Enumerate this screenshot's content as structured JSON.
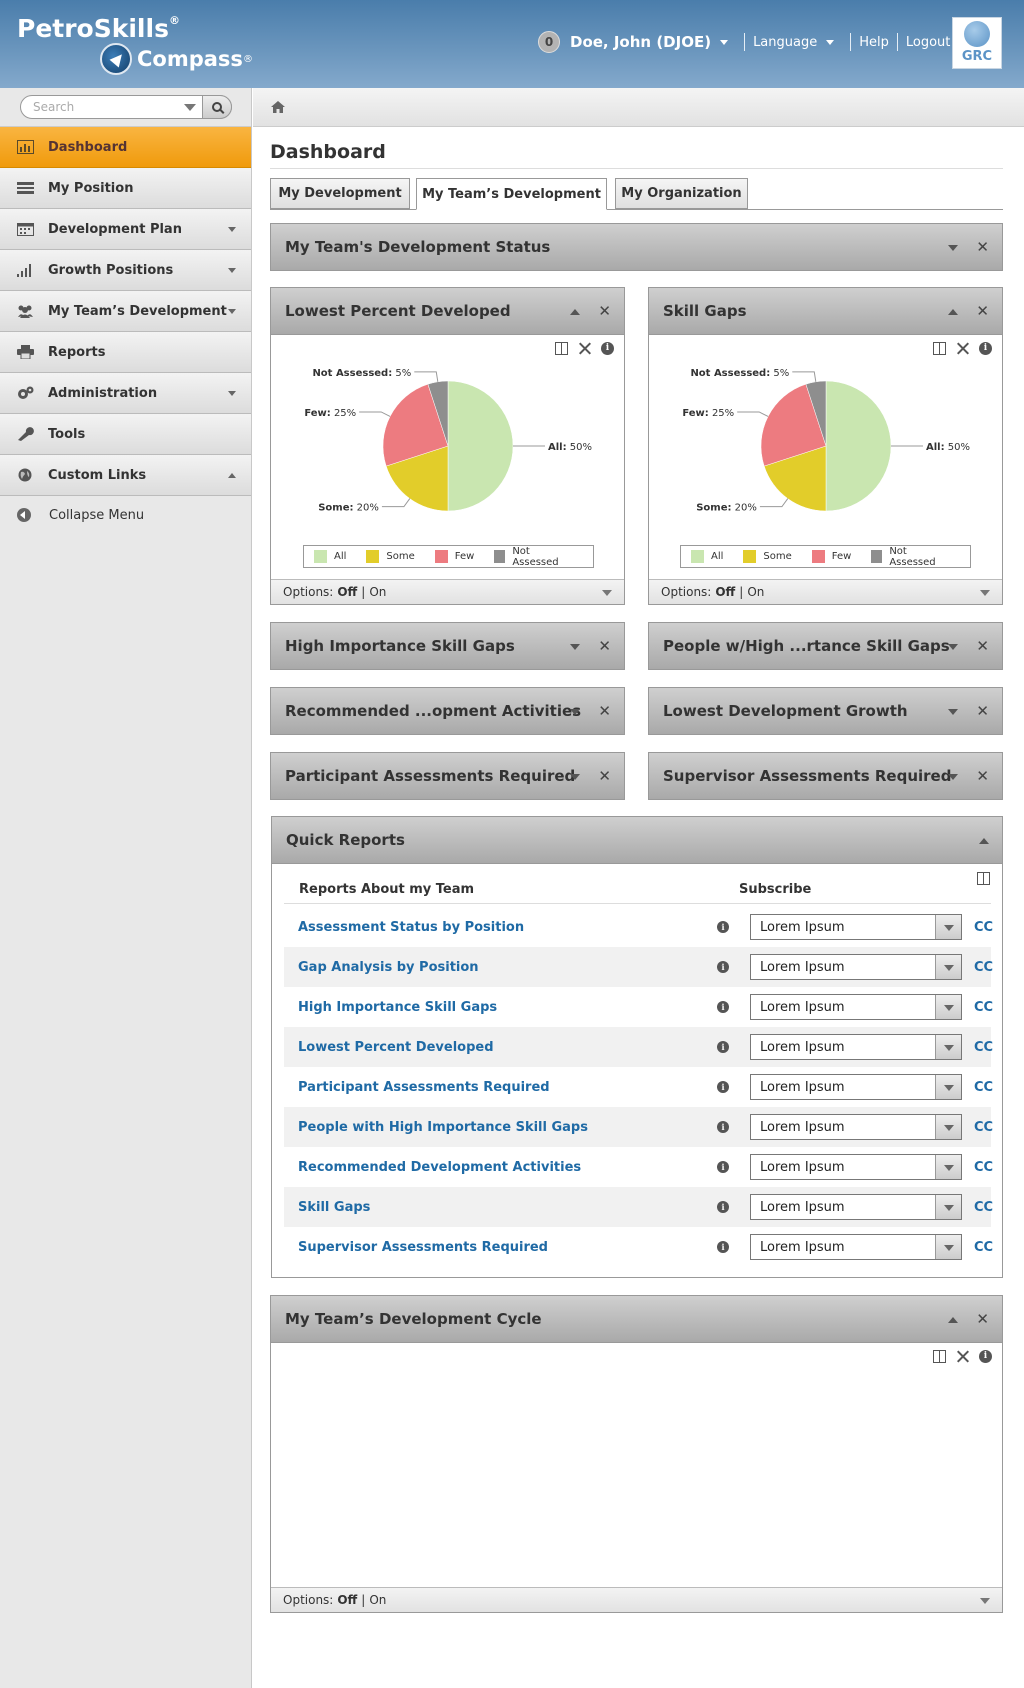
{
  "header": {
    "brand_top": "PetroSkills",
    "brand_top_mark": "®",
    "brand_bottom": "Compass",
    "brand_bottom_mark": "®",
    "notification_count": "0",
    "user_name": "Doe, John (DJOE)",
    "language_label": "Language",
    "help_label": "Help",
    "logout_label": "Logout",
    "grc_label": "GRC"
  },
  "sidebar": {
    "search_placeholder": "Search",
    "items": [
      {
        "label": "Dashboard",
        "icon": "bar-chart-icon",
        "active": true
      },
      {
        "label": "My Position",
        "icon": "list-icon"
      },
      {
        "label": "Development Plan",
        "icon": "calendar-icon",
        "caret": "down"
      },
      {
        "label": "Growth Positions",
        "icon": "signal-bars-icon",
        "caret": "down"
      },
      {
        "label": "My Team’s Development",
        "icon": "team-icon",
        "caret": "down"
      },
      {
        "label": "Reports",
        "icon": "printer-icon"
      },
      {
        "label": "Administration",
        "icon": "gears-icon",
        "caret": "down"
      },
      {
        "label": "Tools",
        "icon": "wrench-icon"
      },
      {
        "label": "Custom Links",
        "icon": "globe-icon",
        "caret": "up"
      }
    ],
    "collapse_label": "Collapse Menu"
  },
  "main": {
    "title": "Dashboard",
    "tabs": [
      {
        "label": "My Development"
      },
      {
        "label": "My Team’s Development",
        "active": true
      },
      {
        "label": "My Organization"
      }
    ],
    "status_panel_title": "My Team's Development Status",
    "pie_panels": [
      {
        "title": "Lowest Percent Developed",
        "options_label": "Options:",
        "options_off": "Off",
        "options_sep": "|",
        "options_on": "On"
      },
      {
        "title": "Skill Gaps",
        "options_label": "Options:",
        "options_off": "Off",
        "options_sep": "|",
        "options_on": "On"
      }
    ],
    "collapsed_panels": [
      "High Importance Skill Gaps",
      "People w/High ...rtance Skill Gaps",
      "Recommended ...opment Activities",
      "Lowest Development Growth",
      "Participant Assessments Required",
      "Supervisor Assessments Required"
    ],
    "quick_reports": {
      "title": "Quick Reports",
      "col_reports": "Reports About my Team",
      "col_subscribe": "Subscribe",
      "rows": [
        {
          "name": "Assessment Status by Position",
          "subscribe": "Lorem Ipsum",
          "cc": "CC"
        },
        {
          "name": "Gap Analysis by Position",
          "subscribe": "Lorem Ipsum",
          "cc": "CC"
        },
        {
          "name": "High Importance Skill Gaps",
          "subscribe": "Lorem Ipsum",
          "cc": "CC"
        },
        {
          "name": "Lowest Percent Developed",
          "subscribe": "Lorem Ipsum",
          "cc": "CC"
        },
        {
          "name": "Participant Assessments Required",
          "subscribe": "Lorem Ipsum",
          "cc": "CC"
        },
        {
          "name": "People with High Importance Skill Gaps",
          "subscribe": "Lorem Ipsum",
          "cc": "CC"
        },
        {
          "name": "Recommended Development Activities",
          "subscribe": "Lorem Ipsum",
          "cc": "CC"
        },
        {
          "name": "Skill Gaps",
          "subscribe": "Lorem Ipsum",
          "cc": "CC"
        },
        {
          "name": "Supervisor Assessments Required",
          "subscribe": "Lorem Ipsum",
          "cc": "CC"
        }
      ]
    },
    "cycle_panel": {
      "title": "My Team’s Development Cycle",
      "options_label": "Options:",
      "options_off": "Off",
      "options_sep": "|",
      "options_on": "On"
    }
  },
  "chart_data": [
    {
      "type": "pie",
      "categories": [
        "All",
        "Some",
        "Few",
        "Not Assessed"
      ],
      "values": [
        50,
        20,
        25,
        5
      ],
      "unit": "%",
      "colors": [
        "#c9e6b0",
        "#e2cd2a",
        "#ed7b80",
        "#8e8e8e"
      ],
      "legend": "bottom"
    },
    {
      "type": "pie",
      "categories": [
        "All",
        "Some",
        "Few",
        "Not Assessed"
      ],
      "values": [
        50,
        20,
        25,
        5
      ],
      "unit": "%",
      "colors": [
        "#c9e6b0",
        "#e2cd2a",
        "#ed7b80",
        "#8e8e8e"
      ],
      "legend": "bottom"
    }
  ]
}
